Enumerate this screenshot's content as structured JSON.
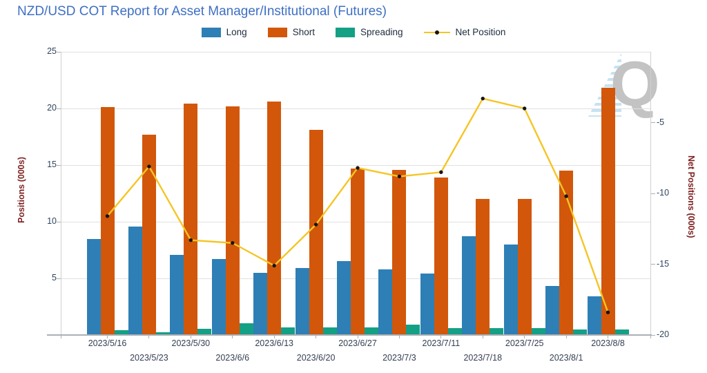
{
  "title": "NZD/USD COT Report for Asset Manager/Institutional (Futures)",
  "watermark": "Q",
  "legend": {
    "items": [
      {
        "label": "Long",
        "color": "#2E7FB5",
        "type": "bar"
      },
      {
        "label": "Short",
        "color": "#D2570A",
        "type": "bar"
      },
      {
        "label": "Spreading",
        "color": "#14A085",
        "type": "bar"
      },
      {
        "label": "Net Position",
        "color": "#F5C524",
        "type": "line"
      }
    ]
  },
  "chart_data": {
    "type": "bar",
    "title": "NZD/USD COT Report for Asset Manager/Institutional (Futures)",
    "categories": [
      "2023/5/16",
      "2023/5/23",
      "2023/5/30",
      "2023/6/6",
      "2023/6/13",
      "2023/6/20",
      "2023/6/27",
      "2023/7/3",
      "2023/7/11",
      "2023/7/18",
      "2023/7/25",
      "2023/8/1",
      "2023/8/8"
    ],
    "series": [
      {
        "name": "Long",
        "type": "bar",
        "axis": "left",
        "color": "#2E7FB5",
        "values": [
          8.5,
          9.6,
          7.1,
          6.7,
          5.5,
          5.9,
          6.5,
          5.8,
          5.4,
          8.7,
          8.0,
          4.3,
          3.4
        ]
      },
      {
        "name": "Short",
        "type": "bar",
        "axis": "left",
        "color": "#D2570A",
        "values": [
          20.1,
          17.7,
          20.4,
          20.2,
          20.6,
          18.1,
          14.7,
          14.6,
          13.9,
          12.0,
          12.0,
          14.5,
          21.8
        ]
      },
      {
        "name": "Spreading",
        "type": "bar",
        "axis": "left",
        "color": "#14A085",
        "values": [
          0.4,
          0.25,
          0.55,
          1.05,
          0.7,
          0.65,
          0.7,
          0.9,
          0.6,
          0.6,
          0.6,
          0.5,
          0.5
        ]
      },
      {
        "name": "Net Position",
        "type": "line",
        "axis": "right",
        "color": "#F5C524",
        "point_color": "#151515",
        "values": [
          -11.6,
          -8.1,
          -13.3,
          -13.5,
          -15.1,
          -12.2,
          -8.2,
          -8.8,
          -8.5,
          -3.3,
          -4.0,
          -10.2,
          -18.4
        ]
      }
    ],
    "left_axis": {
      "label": "Positions (000s)",
      "ticks": [
        5,
        10,
        15,
        20,
        25
      ],
      "range": [
        0,
        25
      ]
    },
    "right_axis": {
      "label": "Net Positions (000s)",
      "ticks": [
        -5,
        -10,
        -15,
        -20
      ],
      "range": [
        -20,
        0
      ]
    },
    "grid": true,
    "legend_position": "top"
  }
}
